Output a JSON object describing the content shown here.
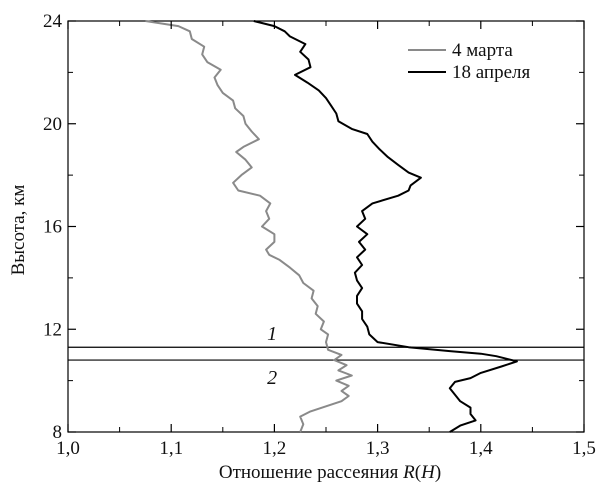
{
  "chart_data": {
    "type": "line",
    "title": "",
    "xlabel": "Отношение рассеяния",
    "xlabel_symbol": "R",
    "xlabel_paren_open": "(",
    "xlabel_paren_arg": "H",
    "xlabel_paren_close": ")",
    "ylabel": "Высота, км",
    "xlim": [
      1.0,
      1.5
    ],
    "ylim": [
      8,
      24
    ],
    "x_ticks": [
      1.0,
      1.1,
      1.2,
      1.3,
      1.4,
      1.5
    ],
    "x_tick_labels": [
      "1,0",
      "1,1",
      "1,2",
      "1,3",
      "1,4",
      "1,5"
    ],
    "y_ticks": [
      8,
      12,
      16,
      20,
      24
    ],
    "y_tick_labels": [
      "8",
      "12",
      "16",
      "20",
      "24"
    ],
    "grid": false,
    "legend_position": "top-right",
    "series": [
      {
        "name": "4 марта",
        "color": "#8a8a8a",
        "points": [
          [
            1.225,
            8.0
          ],
          [
            1.228,
            8.3
          ],
          [
            1.225,
            8.6
          ],
          [
            1.235,
            8.8
          ],
          [
            1.25,
            9.0
          ],
          [
            1.265,
            9.2
          ],
          [
            1.272,
            9.4
          ],
          [
            1.265,
            9.6
          ],
          [
            1.272,
            9.8
          ],
          [
            1.26,
            10.0
          ],
          [
            1.275,
            10.2
          ],
          [
            1.262,
            10.4
          ],
          [
            1.27,
            10.6
          ],
          [
            1.258,
            10.8
          ],
          [
            1.265,
            11.0
          ],
          [
            1.252,
            11.2
          ],
          [
            1.25,
            11.5
          ],
          [
            1.252,
            11.8
          ],
          [
            1.245,
            12.0
          ],
          [
            1.248,
            12.3
          ],
          [
            1.24,
            12.6
          ],
          [
            1.242,
            12.9
          ],
          [
            1.236,
            13.2
          ],
          [
            1.238,
            13.5
          ],
          [
            1.228,
            13.8
          ],
          [
            1.224,
            14.1
          ],
          [
            1.215,
            14.4
          ],
          [
            1.205,
            14.7
          ],
          [
            1.195,
            14.9
          ],
          [
            1.192,
            15.1
          ],
          [
            1.2,
            15.4
          ],
          [
            1.2,
            15.7
          ],
          [
            1.188,
            16.0
          ],
          [
            1.195,
            16.3
          ],
          [
            1.192,
            16.6
          ],
          [
            1.196,
            16.9
          ],
          [
            1.186,
            17.2
          ],
          [
            1.165,
            17.4
          ],
          [
            1.16,
            17.7
          ],
          [
            1.168,
            18.0
          ],
          [
            1.178,
            18.3
          ],
          [
            1.172,
            18.6
          ],
          [
            1.163,
            18.9
          ],
          [
            1.17,
            19.1
          ],
          [
            1.185,
            19.4
          ],
          [
            1.178,
            19.7
          ],
          [
            1.172,
            20.0
          ],
          [
            1.17,
            20.3
          ],
          [
            1.162,
            20.6
          ],
          [
            1.16,
            20.9
          ],
          [
            1.15,
            21.2
          ],
          [
            1.145,
            21.5
          ],
          [
            1.142,
            21.8
          ],
          [
            1.148,
            22.1
          ],
          [
            1.135,
            22.4
          ],
          [
            1.13,
            22.7
          ],
          [
            1.132,
            23.0
          ],
          [
            1.12,
            23.3
          ],
          [
            1.118,
            23.6
          ],
          [
            1.107,
            23.8
          ],
          [
            1.075,
            24.0
          ]
        ]
      },
      {
        "name": "18 апреля",
        "color": "#000000",
        "points": [
          [
            1.37,
            8.0
          ],
          [
            1.38,
            8.25
          ],
          [
            1.395,
            8.45
          ],
          [
            1.39,
            8.7
          ],
          [
            1.39,
            8.95
          ],
          [
            1.38,
            9.2
          ],
          [
            1.375,
            9.45
          ],
          [
            1.37,
            9.7
          ],
          [
            1.375,
            9.95
          ],
          [
            1.39,
            10.1
          ],
          [
            1.4,
            10.3
          ],
          [
            1.42,
            10.55
          ],
          [
            1.435,
            10.75
          ],
          [
            1.415,
            10.95
          ],
          [
            1.4,
            11.05
          ],
          [
            1.37,
            11.15
          ],
          [
            1.33,
            11.3
          ],
          [
            1.3,
            11.5
          ],
          [
            1.292,
            11.8
          ],
          [
            1.29,
            12.1
          ],
          [
            1.285,
            12.4
          ],
          [
            1.285,
            12.7
          ],
          [
            1.28,
            13.0
          ],
          [
            1.28,
            13.3
          ],
          [
            1.285,
            13.6
          ],
          [
            1.28,
            13.9
          ],
          [
            1.278,
            14.2
          ],
          [
            1.285,
            14.5
          ],
          [
            1.28,
            14.8
          ],
          [
            1.288,
            15.1
          ],
          [
            1.282,
            15.4
          ],
          [
            1.29,
            15.7
          ],
          [
            1.28,
            16.0
          ],
          [
            1.288,
            16.3
          ],
          [
            1.285,
            16.6
          ],
          [
            1.295,
            16.9
          ],
          [
            1.32,
            17.2
          ],
          [
            1.33,
            17.4
          ],
          [
            1.332,
            17.6
          ],
          [
            1.342,
            17.9
          ],
          [
            1.33,
            18.1
          ],
          [
            1.32,
            18.4
          ],
          [
            1.31,
            18.7
          ],
          [
            1.302,
            19.0
          ],
          [
            1.295,
            19.3
          ],
          [
            1.29,
            19.6
          ],
          [
            1.275,
            19.8
          ],
          [
            1.262,
            20.1
          ],
          [
            1.26,
            20.4
          ],
          [
            1.255,
            20.7
          ],
          [
            1.25,
            21.0
          ],
          [
            1.243,
            21.3
          ],
          [
            1.232,
            21.6
          ],
          [
            1.22,
            21.9
          ],
          [
            1.235,
            22.2
          ],
          [
            1.233,
            22.5
          ],
          [
            1.225,
            22.8
          ],
          [
            1.23,
            23.1
          ],
          [
            1.215,
            23.4
          ],
          [
            1.21,
            23.6
          ],
          [
            1.2,
            23.8
          ],
          [
            1.18,
            24.0
          ]
        ]
      }
    ],
    "reference_lines": [
      {
        "label": "1",
        "y": 11.3,
        "label_x": 1.13
      },
      {
        "label": "2",
        "y": 10.8,
        "label_x": 1.13
      }
    ]
  }
}
